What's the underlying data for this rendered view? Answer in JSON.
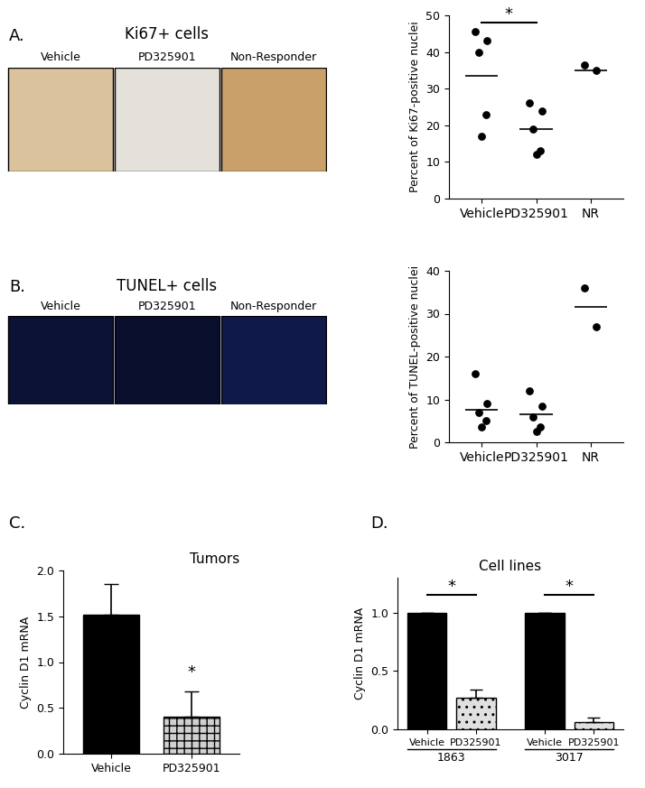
{
  "images": [
    {
      "panel": "A.",
      "title": "Ki67+ cells",
      "labels": [
        "Vehicle",
        "PD325901",
        "Non-Responder"
      ]
    },
    {
      "panel": "B.",
      "title": "TUNEL+ cells",
      "labels": [
        "Vehicle",
        "PD325901",
        "Non-Responder"
      ]
    }
  ],
  "chart_data": [
    {
      "type": "scatter",
      "categories": [
        "Vehicle",
        "PD325901",
        "NR"
      ],
      "points": [
        [
          45.5,
          43,
          40,
          23,
          17
        ],
        [
          26,
          24,
          19,
          13,
          12
        ],
        [
          36.5,
          35
        ]
      ],
      "means": [
        33.5,
        19,
        35
      ],
      "color": "#000000",
      "ylabel": "Percent of Ki67-positive nuclei",
      "ylim": [
        0,
        50
      ],
      "yticks": [
        0,
        10,
        20,
        30,
        40,
        50
      ],
      "significance": [
        {
          "text": "*",
          "between": [
            "Vehicle",
            "PD325901"
          ],
          "y": 48
        }
      ]
    },
    {
      "type": "scatter",
      "categories": [
        "Vehicle",
        "PD325901",
        "NR"
      ],
      "points": [
        [
          16,
          9,
          7,
          5,
          3.5
        ],
        [
          12,
          8.5,
          6,
          3.5,
          2.5
        ],
        [
          36,
          27
        ]
      ],
      "means": [
        7.5,
        6.5,
        31.5
      ],
      "color": "#000000",
      "ylabel": "Percent of TUNEL-positive nuclei",
      "ylim": [
        0,
        40
      ],
      "yticks": [
        0,
        10,
        20,
        30,
        40
      ],
      "significance": []
    },
    {
      "type": "bar",
      "panel": "C.",
      "title": "Tumors",
      "categories": [
        "Vehicle",
        "PD325901"
      ],
      "values": [
        1.52,
        0.4
      ],
      "errors": [
        0.33,
        0.28
      ],
      "colors": [
        "#000000",
        "#d0d0d0"
      ],
      "ylabel": "Cyclin D1 mRNA",
      "ylim": [
        0,
        2.0
      ],
      "yticks": [
        {
          "value": 0,
          "label": "0.0"
        },
        {
          "value": 0.5,
          "label": "0.5"
        },
        {
          "value": 1,
          "label": "1.0"
        },
        {
          "value": 1.5,
          "label": "1.5"
        },
        {
          "value": 2,
          "label": "2.0"
        }
      ],
      "annotations": [
        {
          "text": "*",
          "category": "PD325901",
          "y": 0.8
        }
      ]
    },
    {
      "type": "grouped_bar",
      "panel": "D.",
      "title": "Cell lines",
      "categories": [
        "Vehicle",
        "PD325901"
      ],
      "groups": [
        "1863",
        "3017"
      ],
      "values": [
        [
          1.0,
          0.27
        ],
        [
          1.0,
          0.06
        ]
      ],
      "errors": [
        [
          0,
          0.07
        ],
        [
          0,
          0.04
        ]
      ],
      "colors": [
        "#000000",
        "#e0e0e0"
      ],
      "ylabel": "Cyclin D1 mRNA",
      "ylim": [
        0,
        1.3
      ],
      "yticks": [
        {
          "value": 0,
          "label": "0.0"
        },
        {
          "value": 0.5,
          "label": "0.5"
        },
        {
          "value": 1,
          "label": "1.0"
        }
      ],
      "significance": [
        {
          "text": "*",
          "group": "1863",
          "y": 1.15
        },
        {
          "text": "*",
          "group": "3017",
          "y": 1.15
        }
      ]
    }
  ]
}
